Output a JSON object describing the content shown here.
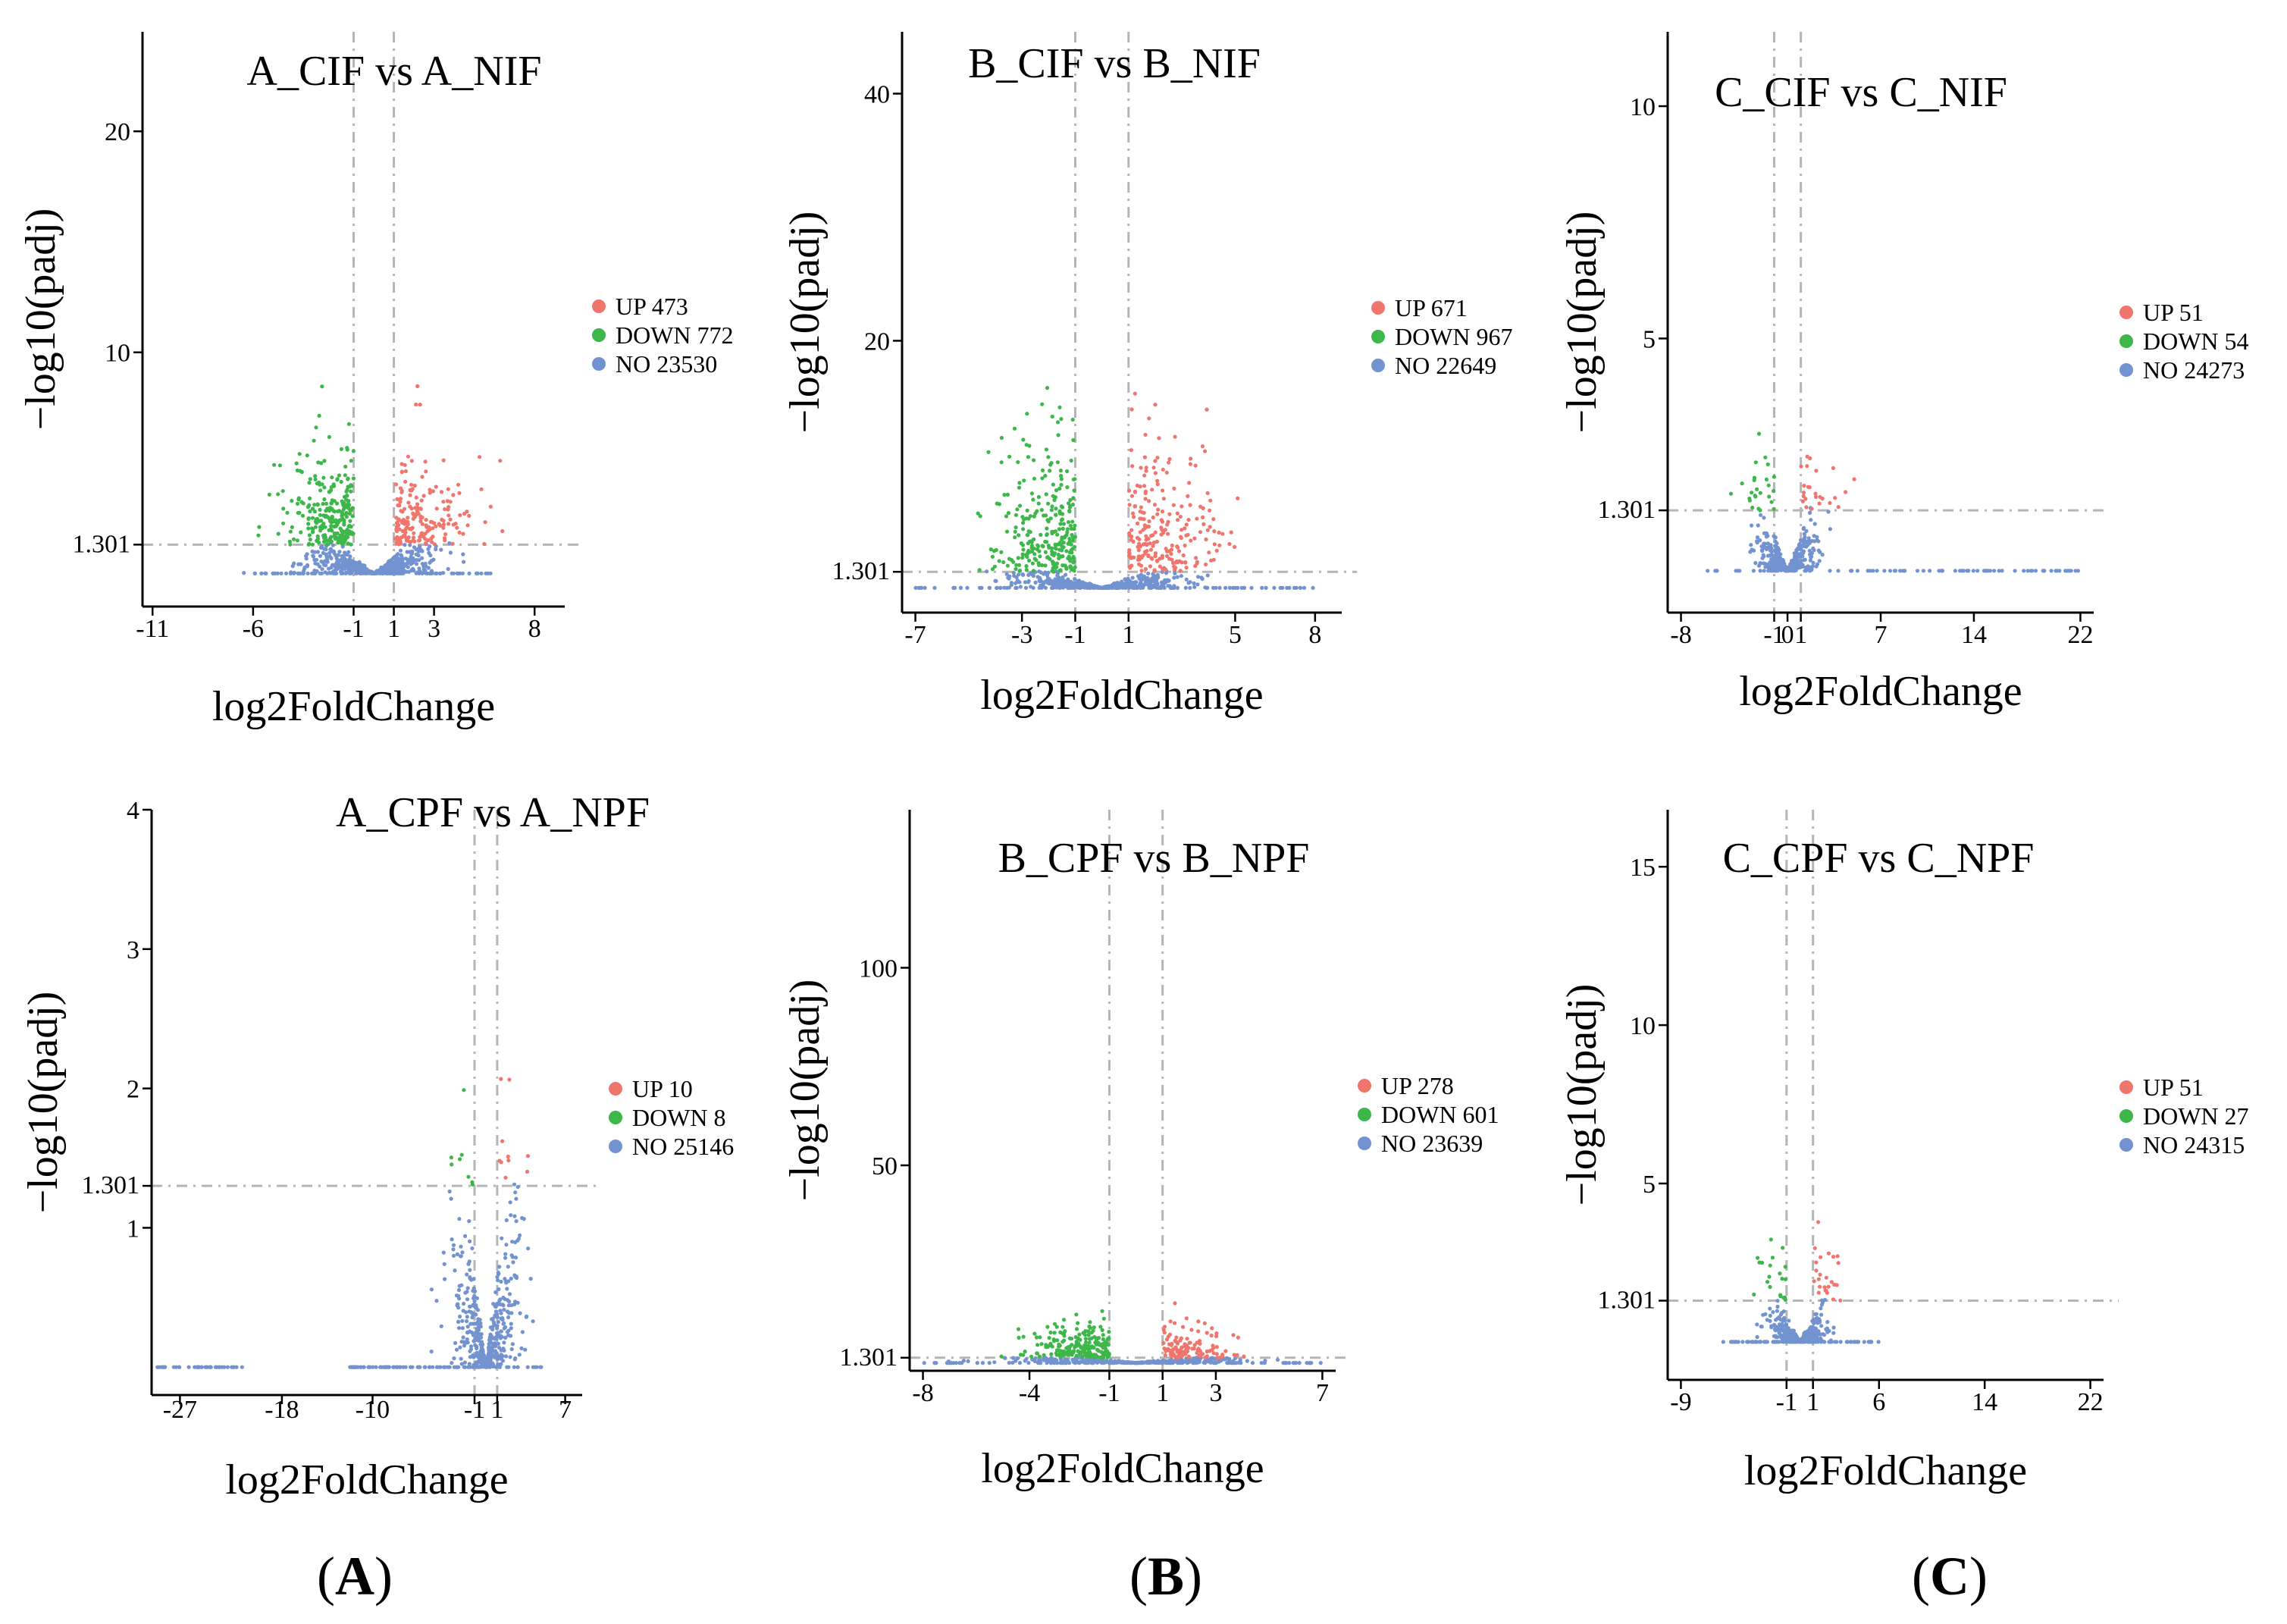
{
  "colors": {
    "up": "#F0766D",
    "down": "#3DB74A",
    "no": "#7393D0",
    "guide": "#b5b5b5"
  },
  "axis_label_x": "log2FoldChange",
  "axis_label_y": "−log10(padj)",
  "panel_labels": [
    "A",
    "B",
    "C"
  ],
  "chart_data": [
    {
      "type": "scatter",
      "title": "A_CIF vs A_NIF",
      "xlabel": "log2FoldChange",
      "ylabel": "−log10(padj)",
      "xlim": [
        -11.5,
        9.5
      ],
      "ylim": [
        -1.5,
        24.5
      ],
      "xticks": [
        -11,
        -6,
        -1,
        1,
        3,
        8
      ],
      "yticks": [
        10,
        20
      ],
      "ythreshold": 1.301,
      "xthresholds": [
        -1,
        1
      ],
      "grid": false,
      "legend_position": "right",
      "series": [
        {
          "name": "UP",
          "count": "473"
        },
        {
          "name": "DOWN",
          "count": "772"
        },
        {
          "name": "NO",
          "count": "23530"
        }
      ]
    },
    {
      "type": "scatter",
      "title": "B_CIF vs B_NIF",
      "xlabel": "log2FoldChange",
      "ylabel": "−log10(padj)",
      "xlim": [
        -7.5,
        9.0
      ],
      "ylim": [
        -2.0,
        45.0
      ],
      "xticks": [
        -7,
        -3,
        -1,
        1,
        5,
        8
      ],
      "yticks": [
        20,
        40
      ],
      "ythreshold": 1.301,
      "xthresholds": [
        -1,
        1
      ],
      "grid": false,
      "legend_position": "right",
      "series": [
        {
          "name": "UP",
          "count": "671"
        },
        {
          "name": "DOWN",
          "count": "967"
        },
        {
          "name": "NO",
          "count": "22649"
        }
      ]
    },
    {
      "type": "scatter",
      "title": "C_CIF vs C_NIF",
      "xlabel": "log2FoldChange",
      "ylabel": "−log10(padj)",
      "xlim": [
        -9.0,
        23.0
      ],
      "ylim": [
        -0.9,
        11.6
      ],
      "xticks": [
        -8,
        -1,
        0,
        1,
        7,
        14,
        22
      ],
      "yticks": [
        5,
        10
      ],
      "ythreshold": 1.301,
      "xthresholds": [
        -1,
        1
      ],
      "grid": false,
      "legend_position": "right",
      "series": [
        {
          "name": "UP",
          "count": "51"
        },
        {
          "name": "DOWN",
          "count": "54"
        },
        {
          "name": "NO",
          "count": "24273"
        }
      ]
    },
    {
      "type": "scatter",
      "title": "A_CPF vs A_NPF",
      "xlabel": "log2FoldChange",
      "ylabel": "−log10(padj)",
      "xlim": [
        -29.5,
        8.5
      ],
      "ylim": [
        -0.2,
        4.0
      ],
      "xticks": [
        -27,
        -18,
        -10,
        -1,
        1,
        7
      ],
      "yticks": [
        1,
        2,
        3,
        4
      ],
      "ythreshold": 1.301,
      "xthresholds": [
        -1,
        1
      ],
      "grid": false,
      "legend_position": "right",
      "series": [
        {
          "name": "UP",
          "count": "10"
        },
        {
          "name": "DOWN",
          "count": "8"
        },
        {
          "name": "NO",
          "count": "25146"
        }
      ]
    },
    {
      "type": "scatter",
      "title": "B_CPF vs B_NPF",
      "xlabel": "log2FoldChange",
      "ylabel": "−log10(padj)",
      "xlim": [
        -8.5,
        7.5
      ],
      "ylim": [
        -2.0,
        140.0
      ],
      "xticks": [
        -8,
        -4,
        -1,
        1,
        3,
        7
      ],
      "yticks": [
        50,
        100
      ],
      "ythreshold": 1.301,
      "xthresholds": [
        -1,
        1
      ],
      "grid": false,
      "legend_position": "right",
      "series": [
        {
          "name": "UP",
          "count": "278"
        },
        {
          "name": "DOWN",
          "count": "601"
        },
        {
          "name": "NO",
          "count": "23639"
        }
      ]
    },
    {
      "type": "scatter",
      "title": "C_CPF vs C_NPF",
      "xlabel": "log2FoldChange",
      "ylabel": "−log10(padj)",
      "xlim": [
        -10.0,
        23.0
      ],
      "ylim": [
        -1.2,
        16.8
      ],
      "xticks": [
        -9,
        -1,
        1,
        6,
        14,
        22
      ],
      "yticks": [
        5,
        10,
        15
      ],
      "ythreshold": 1.301,
      "xthresholds": [
        -1,
        1
      ],
      "grid": false,
      "legend_position": "right",
      "series": [
        {
          "name": "UP",
          "count": "51"
        },
        {
          "name": "DOWN",
          "count": "27"
        },
        {
          "name": "NO",
          "count": "24315"
        }
      ]
    }
  ]
}
